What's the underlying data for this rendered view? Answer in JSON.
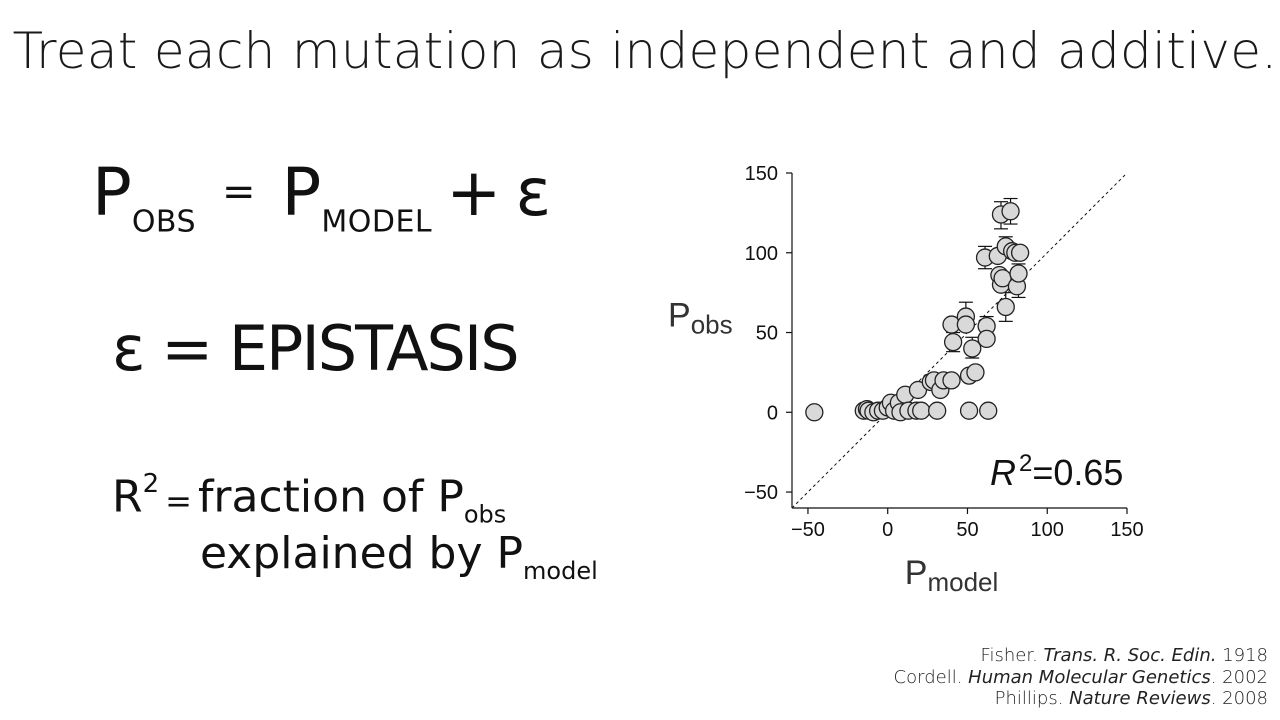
{
  "title": "Treat each mutation as independent and additive.",
  "equations": {
    "eq1": {
      "p": "P",
      "obs": "OBS",
      "equals": "=",
      "model": "MODEL",
      "plus": "+",
      "epsilon": "ε"
    },
    "eq2": "ε = EPISTASIS",
    "eq3": {
      "r": "R",
      "sup": "2",
      "equals": "=",
      "text1": "fraction of P",
      "sub1": "obs",
      "text2": "explained by P",
      "sub2": "model"
    }
  },
  "chart_data": {
    "type": "scatter",
    "xlabel": {
      "main": "P",
      "sub": "model"
    },
    "ylabel": {
      "main": "P",
      "sub": "obs"
    },
    "xlim": [
      -60,
      150
    ],
    "ylim": [
      -60,
      150
    ],
    "xticks": [
      "−50",
      "0",
      "50",
      "100",
      "150"
    ],
    "yticks": [
      "−50",
      "0",
      "50",
      "100",
      "150"
    ],
    "xtick_values": [
      -50,
      0,
      50,
      100,
      150
    ],
    "ytick_values": [
      -50,
      0,
      50,
      100,
      150
    ],
    "identity_line": true,
    "annotation": {
      "r": "R",
      "sup": "2",
      "value": "=0.65"
    },
    "marker_fill": "#d9d9d9",
    "marker_edge": "#222222",
    "points": [
      {
        "x": -46,
        "y": 0
      },
      {
        "x": -15,
        "y": 1
      },
      {
        "x": -13,
        "y": 2
      },
      {
        "x": -12,
        "y": 1
      },
      {
        "x": -9,
        "y": 0
      },
      {
        "x": -6,
        "y": 1
      },
      {
        "x": -3,
        "y": 1
      },
      {
        "x": 0,
        "y": 3
      },
      {
        "x": 2,
        "y": 6
      },
      {
        "x": 4,
        "y": 1
      },
      {
        "x": 7,
        "y": 6
      },
      {
        "x": 8,
        "y": 0
      },
      {
        "x": 11,
        "y": 11
      },
      {
        "x": 13,
        "y": 1
      },
      {
        "x": 18,
        "y": 1
      },
      {
        "x": 19,
        "y": 14
      },
      {
        "x": 21,
        "y": 1
      },
      {
        "x": 27,
        "y": 19
      },
      {
        "x": 29,
        "y": 20
      },
      {
        "x": 31,
        "y": 1
      },
      {
        "x": 33,
        "y": 14
      },
      {
        "x": 35,
        "y": 20
      },
      {
        "x": 40,
        "y": 20
      },
      {
        "x": 40,
        "y": 55
      },
      {
        "x": 41,
        "y": 44
      },
      {
        "x": 49,
        "y": 60
      },
      {
        "x": 49,
        "y": 55
      },
      {
        "x": 51,
        "y": 1
      },
      {
        "x": 51,
        "y": 23
      },
      {
        "x": 53,
        "y": 40
      },
      {
        "x": 55,
        "y": 25
      },
      {
        "x": 62,
        "y": 54
      },
      {
        "x": 62,
        "y": 46
      },
      {
        "x": 63,
        "y": 1
      },
      {
        "x": 61,
        "y": 97
      },
      {
        "x": 69,
        "y": 98
      },
      {
        "x": 70,
        "y": 86
      },
      {
        "x": 71,
        "y": 80
      },
      {
        "x": 72,
        "y": 84
      },
      {
        "x": 74,
        "y": 104
      },
      {
        "x": 74,
        "y": 66
      },
      {
        "x": 71,
        "y": 124
      },
      {
        "x": 77,
        "y": 126
      },
      {
        "x": 78,
        "y": 101
      },
      {
        "x": 80,
        "y": 100
      },
      {
        "x": 81,
        "y": 79
      },
      {
        "x": 82,
        "y": 87
      },
      {
        "x": 83,
        "y": 100
      }
    ],
    "error_bars": [
      {
        "x": 49,
        "low": 57,
        "high": 69
      },
      {
        "x": 41,
        "low": 38,
        "high": 50
      },
      {
        "x": 53,
        "low": 34,
        "high": 47
      },
      {
        "x": 62,
        "low": 48,
        "high": 60
      },
      {
        "x": 61,
        "low": 90,
        "high": 104
      },
      {
        "x": 71,
        "low": 115,
        "high": 132
      },
      {
        "x": 77,
        "low": 118,
        "high": 134
      },
      {
        "x": 74,
        "low": 57,
        "high": 75
      },
      {
        "x": 82,
        "low": 72,
        "high": 93
      },
      {
        "x": 74,
        "low": 98,
        "high": 110
      }
    ]
  },
  "references": [
    {
      "author": "Fisher. ",
      "journal": "Trans. R. Soc. Edin.",
      "year": " 1918"
    },
    {
      "author": "Cordell. ",
      "journal": "Human Molecular Genetics",
      "year": ". 2002"
    },
    {
      "author": "Phillips. ",
      "journal": "Nature Reviews",
      "year": ". 2008"
    }
  ]
}
